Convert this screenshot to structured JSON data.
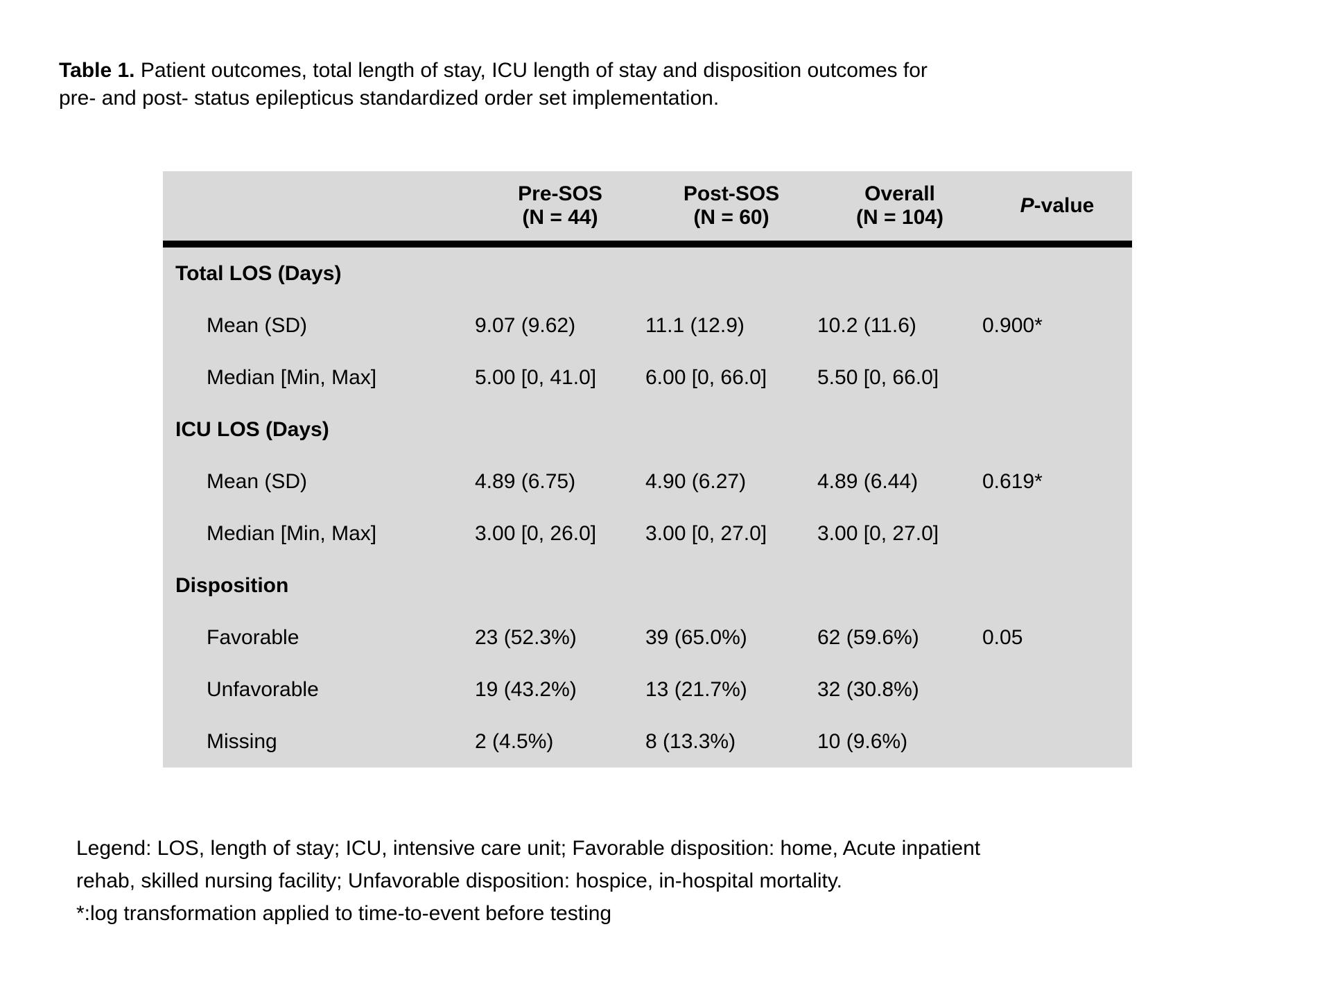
{
  "title": {
    "bold": "Table 1.",
    "line1": "Patient outcomes, total length of stay, ICU length of stay and disposition outcomes for",
    "line2": "pre- and post- status epilepticus standardized order set implementation."
  },
  "table": {
    "columns": [
      {
        "line1": "Pre-SOS",
        "line2": "(N = 44)"
      },
      {
        "line1": "Post-SOS",
        "line2": "(N = 60)"
      },
      {
        "line1": "Overall",
        "line2": "(N = 104)"
      },
      {
        "p_italic": "P",
        "p_rest": "-value"
      }
    ],
    "rows": [
      {
        "label": "Total LOS (Days)",
        "pre": "",
        "post": "",
        "overall": "",
        "p": ""
      },
      {
        "label": "Mean (SD)",
        "pre": "9.07 (9.62)",
        "post": "11.1 (12.9)",
        "overall": "10.2 (11.6)",
        "p": "0.900*"
      },
      {
        "label": "Median [Min, Max]",
        "pre": "5.00 [0, 41.0]",
        "post": "6.00 [0, 66.0]",
        "overall": "5.50 [0, 66.0]",
        "p": ""
      },
      {
        "label": "ICU LOS (Days)",
        "pre": "",
        "post": "",
        "overall": "",
        "p": ""
      },
      {
        "label": "Mean (SD)",
        "pre": "4.89 (6.75)",
        "post": "4.90 (6.27)",
        "overall": "4.89 (6.44)",
        "p": "0.619*"
      },
      {
        "label": "Median [Min, Max]",
        "pre": "3.00 [0, 26.0]",
        "post": "3.00 [0, 27.0]",
        "overall": "3.00 [0, 27.0]",
        "p": ""
      },
      {
        "label": "Disposition",
        "pre": "",
        "post": "",
        "overall": "",
        "p": ""
      },
      {
        "label": "Favorable",
        "pre": "23 (52.3%)",
        "post": "39 (65.0%)",
        "overall": "62 (59.6%)",
        "p": "0.05"
      },
      {
        "label": "Unfavorable",
        "pre": "19 (43.2%)",
        "post": "13 (21.7%)",
        "overall": "32 (30.8%)",
        "p": ""
      },
      {
        "label": "Missing",
        "pre": "2 (4.5%)",
        "post": "8 (13.3%)",
        "overall": "10 (9.6%)",
        "p": ""
      }
    ]
  },
  "legend": {
    "line1": "Legend: LOS, length of stay; ICU, intensive care unit; Favorable disposition: home, Acute inpatient",
    "line2": "rehab, skilled nursing facility; Unfavorable disposition: hospice, in-hospital mortality.",
    "line3": "*:log transformation applied to time-to-event before testing"
  },
  "colors": {
    "table_background": "#d9d9d9",
    "rule": "#000000",
    "text": "#000000",
    "page_background": "#ffffff"
  }
}
